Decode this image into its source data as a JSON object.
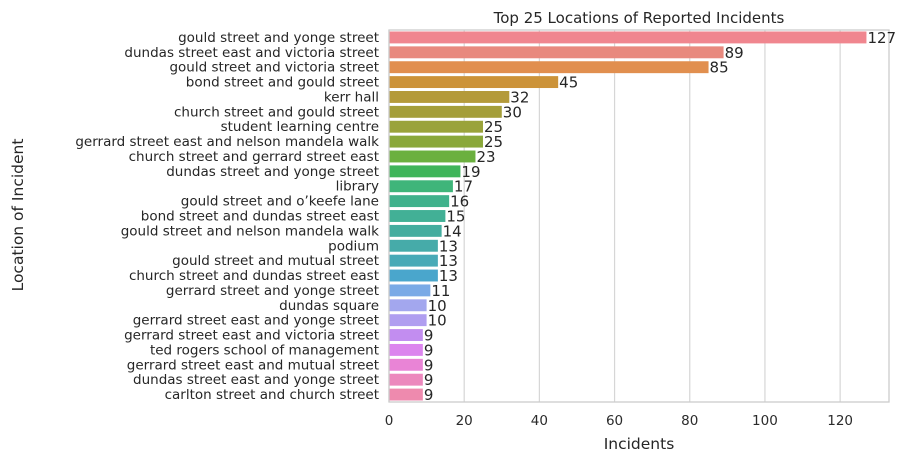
{
  "chart_data": {
    "type": "bar",
    "orientation": "horizontal",
    "title": "Top 25 Locations of Reported Incidents",
    "xlabel": "Incidents",
    "ylabel": "Location of Incident",
    "xlim": [
      0,
      133
    ],
    "xticks": [
      0,
      20,
      40,
      60,
      80,
      100,
      120
    ],
    "grid": "vertical",
    "categories": [
      "gould street and yonge street",
      "dundas street east and victoria street",
      "gould street and victoria street",
      "bond street and gould street",
      "kerr hall",
      "church street and gould street",
      "student learning centre",
      "gerrard street east and nelson mandela walk",
      "church street and gerrard street east",
      "dundas street and yonge street",
      "library",
      "gould street and o’keefe lane",
      "bond street and dundas street east",
      "gould street and nelson mandela walk",
      "podium",
      "gould street and mutual street",
      "church street and dundas street east",
      "gerrard street and yonge street",
      "dundas square",
      "gerrard street east and yonge street",
      "gerrard street east and victoria street",
      "ted rogers school of management",
      "gerrard street east and mutual street",
      "dundas street east and yonge street",
      "carlton street and church street"
    ],
    "values": [
      127,
      89,
      85,
      45,
      32,
      30,
      25,
      25,
      23,
      19,
      17,
      16,
      15,
      14,
      13,
      13,
      13,
      11,
      10,
      10,
      9,
      9,
      9,
      9,
      9
    ],
    "value_labels": [
      "127",
      "89",
      "85",
      "45",
      "32",
      "30",
      "25",
      "25",
      "23",
      "19",
      "17",
      "16",
      "15",
      "14",
      "13",
      "13",
      "13",
      "11",
      "10",
      "10",
      "9",
      "9",
      "9",
      "9",
      "9"
    ],
    "colors": [
      "#f0868f",
      "#e8897e",
      "#e18f4f",
      "#cc9339",
      "#b49a3a",
      "#a49e3a",
      "#9aa33a",
      "#8aa83a",
      "#6bb03f",
      "#3fb55a",
      "#3fb57a",
      "#40b28c",
      "#42b096",
      "#44ad9f",
      "#46aba9",
      "#48aab7",
      "#4aa6cc",
      "#7aaae6",
      "#a3a7ee",
      "#b09ef0",
      "#c28df0",
      "#dc85ee",
      "#e984d6",
      "#ec88bd",
      "#ee8aae"
    ]
  }
}
